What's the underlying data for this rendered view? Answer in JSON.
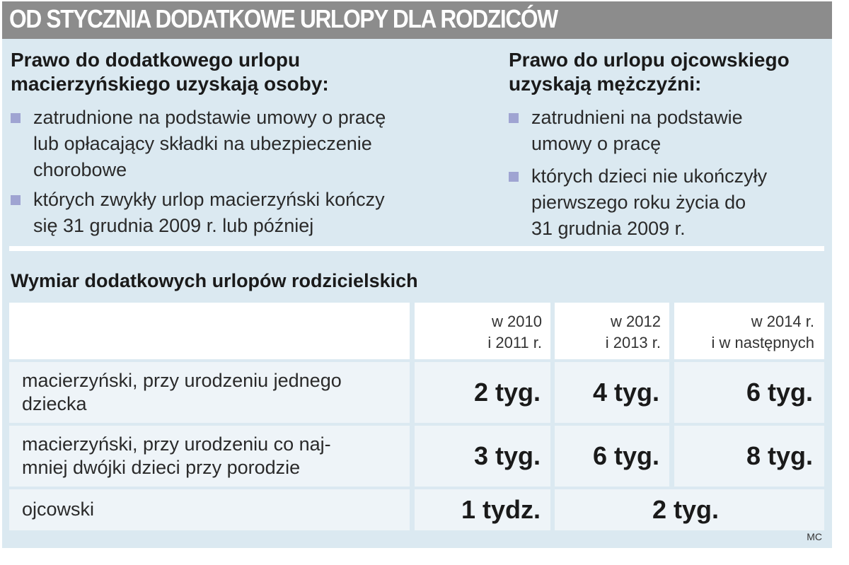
{
  "header": {
    "title": "OD STYCZNIA DODATKOWE URLOPY DLA RODZICÓW"
  },
  "left_column": {
    "heading_lines": [
      "Prawo do dodatkowego urlopu",
      "macierzyńskiego uzyskają osoby:"
    ],
    "bullets": [
      [
        "zatrudnione na podstawie umowy o pracę",
        "lub opłacający składki na ubezpieczenie",
        "chorobowe"
      ],
      [
        "których zwykły urlop macierzyński kończy",
        "się 31 grudnia 2009 r. lub później"
      ]
    ]
  },
  "right_column": {
    "heading_lines": [
      "Prawo do urlopu ojcowskiego",
      "uzyskają mężczyźni:"
    ],
    "bullets": [
      [
        "zatrudnieni na podstawie",
        "umowy o pracę"
      ],
      [
        "których dzieci nie ukończyły",
        "pierwszego roku życia do",
        "31 grudnia 2009 r."
      ]
    ]
  },
  "table": {
    "title": "Wymiar dodatkowych urlopów rodzicielskich",
    "columns": [
      [
        "w 2010",
        "i 2011 r."
      ],
      [
        "w 2012",
        "i  2013 r."
      ],
      [
        "w 2014 r.",
        "i w następnych"
      ]
    ],
    "rows": [
      {
        "label_lines": [
          "macierzyński, przy urodzeniu jednego",
          "dziecka"
        ],
        "values": [
          "2 tyg.",
          "4 tyg.",
          "6 tyg."
        ]
      },
      {
        "label_lines": [
          "macierzyński, przy urodzeniu co naj-",
          "mniej dwójki dzieci przy porodzie"
        ],
        "values": [
          "3 tyg.",
          "6 tyg.",
          "8 tyg."
        ]
      },
      {
        "label_lines": [
          "ojcowski"
        ],
        "values": [
          "1 tydz.",
          "2 tyg."
        ]
      }
    ]
  },
  "source": "MC",
  "colors": {
    "header_bg": "#8c8c8c",
    "panel_bg": "#dbe9f1",
    "bullet": "#9fa4d2"
  }
}
